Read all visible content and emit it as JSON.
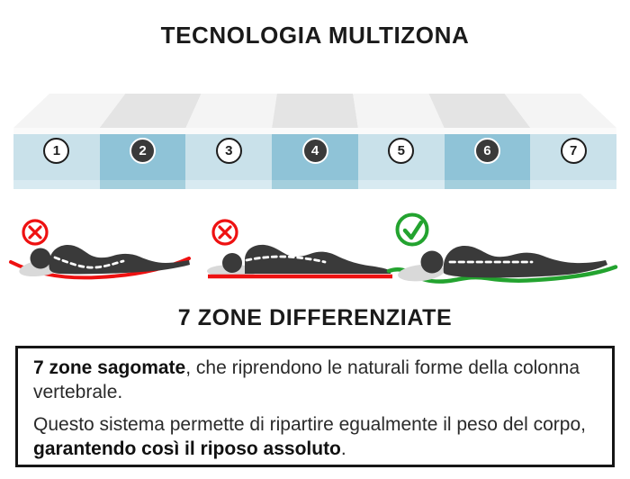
{
  "title": "TECNOLOGIA MULTIZONA",
  "subtitle": "7 ZONE DIFFERENZIATE",
  "mattress": {
    "zones": [
      {
        "label": "1",
        "tone": "light"
      },
      {
        "label": "2",
        "tone": "dark"
      },
      {
        "label": "3",
        "tone": "light"
      },
      {
        "label": "4",
        "tone": "dark"
      },
      {
        "label": "5",
        "tone": "light"
      },
      {
        "label": "6",
        "tone": "dark"
      },
      {
        "label": "7",
        "tone": "light"
      }
    ]
  },
  "figures": [
    {
      "id": "sagging-mattress",
      "verdict": "wrong",
      "icon": "x-mark"
    },
    {
      "id": "too-firm-mattress",
      "verdict": "wrong",
      "icon": "x-mark"
    },
    {
      "id": "ergonomic-mattress",
      "verdict": "correct",
      "icon": "check-mark"
    }
  ],
  "infobox": {
    "paragraphs": [
      {
        "segments": [
          {
            "text": "7 zone sagomate",
            "bold": true
          },
          {
            "text": ", che riprendono le naturali forme della colonna vertebrale.",
            "bold": false
          }
        ]
      },
      {
        "segments": [
          {
            "text": "Questo sistema permette di ripartire egualmente il peso del corpo, ",
            "bold": false
          },
          {
            "text": "garantendo così il riposo assoluto",
            "bold": true
          },
          {
            "text": ".",
            "bold": false
          }
        ]
      }
    ]
  },
  "colors": {
    "zone_light": "#c9e1ea",
    "zone_dark": "#8fc3d7",
    "zone_light_bottom": "#d8eaf1",
    "zone_dark_bottom": "#a4cfdd",
    "top_stripe_light": "#f4f4f4",
    "top_stripe_dark": "#e4e4e4",
    "edge_band": "#fafafa",
    "figure_body": "#3a3a3a",
    "pillow": "#d9d9d9",
    "wrong": "#ee1111",
    "correct": "#23a32f",
    "text": "#2a2a2a"
  }
}
